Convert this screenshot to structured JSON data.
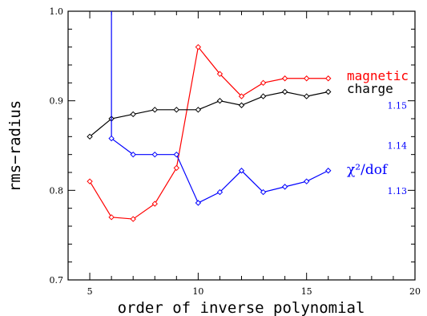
{
  "chart_data": {
    "type": "line",
    "xlabel": "order of inverse polynomial",
    "ylabel": "rms−radius",
    "xlim": [
      4,
      20
    ],
    "ylim": [
      0.7,
      1.0
    ],
    "x_ticks": [
      5,
      10,
      15,
      20
    ],
    "y_ticks": [
      0.7,
      0.8,
      0.9,
      1.0
    ],
    "y_tick_labels": [
      "0.7",
      "0.8",
      "0.9",
      "1.0"
    ],
    "grid": false,
    "right_axis": {
      "label_color": "#0000ff",
      "ticks": [
        {
          "label": "1.15",
          "left_value": 0.895
        },
        {
          "label": "1.14",
          "left_value": 0.85
        },
        {
          "label": "1.13",
          "left_value": 0.7995
        }
      ]
    },
    "series": [
      {
        "name": "magnetic",
        "color": "#ff0000",
        "x": [
          5,
          6,
          7,
          8,
          9,
          10,
          11,
          12,
          13,
          14,
          15,
          16
        ],
        "y": [
          0.81,
          0.77,
          0.768,
          0.785,
          0.825,
          0.96,
          0.93,
          0.905,
          0.92,
          0.925,
          0.925,
          0.925
        ]
      },
      {
        "name": "charge",
        "color": "#000000",
        "x": [
          5,
          6,
          7,
          8,
          9,
          10,
          11,
          12,
          13,
          14,
          15,
          16
        ],
        "y": [
          0.86,
          0.88,
          0.885,
          0.89,
          0.89,
          0.89,
          0.9,
          0.895,
          0.905,
          0.91,
          0.905,
          0.91
        ]
      },
      {
        "name": "χ²/dof",
        "color": "#0000ff",
        "x": [
          6,
          7,
          8,
          9,
          10,
          11,
          12,
          13,
          14,
          15,
          16
        ],
        "y": [
          0.858,
          0.84,
          0.84,
          0.84,
          0.786,
          0.798,
          0.822,
          0.798,
          0.804,
          0.81,
          0.822
        ],
        "leading_segment_from_y": 1.0
      }
    ],
    "legend": {
      "placement": "right",
      "entries": [
        {
          "text": "magnetic",
          "color": "#ff0000"
        },
        {
          "text": "charge",
          "color": "#000000"
        },
        {
          "text": "χ²/dof",
          "color": "#0000ff"
        }
      ]
    }
  }
}
